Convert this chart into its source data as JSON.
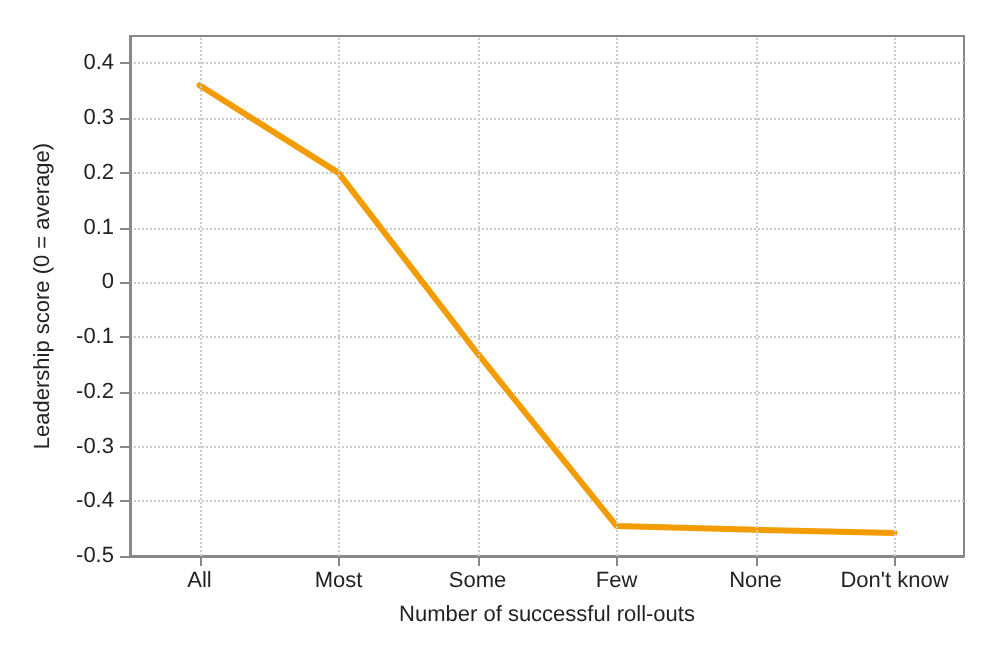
{
  "chart_data": {
    "type": "line",
    "xlabel": "Number of successful roll-outs",
    "ylabel": "Leadership score (0 = average)",
    "categories": [
      "All",
      "Most",
      "Some",
      "Few",
      "None",
      "Don't know"
    ],
    "series": [
      {
        "color": "#f39c00",
        "values": [
          0.36,
          0.2,
          -0.13,
          -0.445,
          -0.452,
          -0.458
        ]
      }
    ],
    "ylim": [
      -0.5,
      0.45
    ],
    "yticks": [
      -0.5,
      -0.4,
      -0.3,
      -0.2,
      -0.1,
      0,
      0.1,
      0.2,
      0.3,
      0.4
    ],
    "grid": true,
    "marker": "none",
    "line_style": "solid"
  }
}
